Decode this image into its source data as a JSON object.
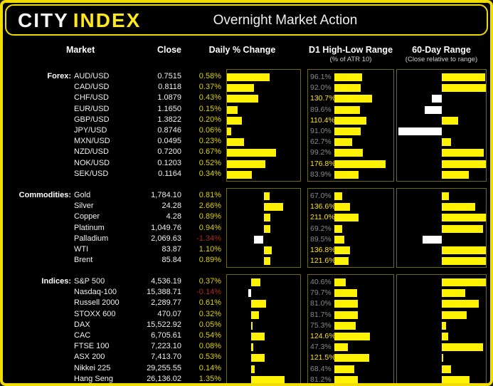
{
  "header": {
    "logo_city": "CITY",
    "logo_index": "INDEX",
    "title": "Overnight Market Action"
  },
  "columns": {
    "market": "Market",
    "close": "Close",
    "daily": "Daily % Change",
    "d1": "D1 High-Low Range",
    "d1_sub": "(% of ATR 10)",
    "range60": "60-Day Range",
    "range60_sub": "(Close relative to range)"
  },
  "colors": {
    "frame_border": "#f0dc00",
    "logo_index_yellow": "#ffe81a",
    "bar_yellow": "#fff200",
    "bar_white": "#ffffff",
    "pct_positive_text": "#e0d100",
    "pct_negative_text": "#b02a1a",
    "d1_above_100_text": "#ffe412",
    "d1_below_100_text": "#8a8a8a",
    "chart_box_border": "#6f6a08"
  },
  "chart_data": {
    "type": "bar",
    "note": "Three market groups; daily % change bars, D1 high-low range as % of ATR10 bars, and close position within 60-day range (-1 low .. +1 high).",
    "groups": [
      {
        "label": "Forex:",
        "daily_axis": {
          "min": 0,
          "max": 1
        },
        "d1_axis_max": 200,
        "rows": [
          {
            "market": "AUD/USD",
            "close": "0.7515",
            "pct_label": "0.58%",
            "pct": 0.58,
            "d1_label": "96.1%",
            "d1": 96.1,
            "r60": 0.98
          },
          {
            "market": "CAD/USD",
            "close": "0.8118",
            "pct_label": "0.37%",
            "pct": 0.37,
            "d1_label": "92.0%",
            "d1": 92.0,
            "r60": 1.0
          },
          {
            "market": "CHF/USD",
            "close": "1.0879",
            "pct_label": "0.43%",
            "pct": 0.43,
            "d1_label": "130.7%",
            "d1": 130.7,
            "r60": -0.22
          },
          {
            "market": "EUR/USD",
            "close": "1.1650",
            "pct_label": "0.15%",
            "pct": 0.15,
            "d1_label": "89.6%",
            "d1": 89.6,
            "r60": -0.38
          },
          {
            "market": "GBP/USD",
            "close": "1.3822",
            "pct_label": "0.20%",
            "pct": 0.2,
            "d1_label": "110.4%",
            "d1": 110.4,
            "r60": 0.38
          },
          {
            "market": "JPY/USD",
            "close": "0.8746",
            "pct_label": "0.06%",
            "pct": 0.06,
            "d1_label": "91.0%",
            "d1": 91.0,
            "r60": -0.97
          },
          {
            "market": "MXN/USD",
            "close": "0.0495",
            "pct_label": "0.23%",
            "pct": 0.23,
            "d1_label": "62.7%",
            "d1": 62.7,
            "r60": 0.22
          },
          {
            "market": "NZD/USD",
            "close": "0.7200",
            "pct_label": "0.67%",
            "pct": 0.67,
            "d1_label": "99.2%",
            "d1": 99.2,
            "r60": 0.95
          },
          {
            "market": "NOK/USD",
            "close": "0.1203",
            "pct_label": "0.52%",
            "pct": 0.52,
            "d1_label": "176.8%",
            "d1": 176.8,
            "r60": 1.0
          },
          {
            "market": "SEK/USD",
            "close": "0.1164",
            "pct_label": "0.34%",
            "pct": 0.34,
            "d1_label": "83.9%",
            "d1": 83.9,
            "r60": 0.62
          }
        ]
      },
      {
        "label": "Commodities:",
        "daily_axis": {
          "min": -5,
          "max": 5
        },
        "d1_axis_max": 500,
        "rows": [
          {
            "market": "Gold",
            "close": "1,784.10",
            "pct_label": "0.81%",
            "pct": 0.81,
            "d1_label": "67.0%",
            "d1": 67.0,
            "r60": 0.16
          },
          {
            "market": "Silver",
            "close": "24.28",
            "pct_label": "2.66%",
            "pct": 2.66,
            "d1_label": "136.6%",
            "d1": 136.6,
            "r60": 0.76
          },
          {
            "market": "Copper",
            "close": "4.28",
            "pct_label": "0.89%",
            "pct": 0.89,
            "d1_label": "211.0%",
            "d1": 211.0,
            "r60": 1.0
          },
          {
            "market": "Platinum",
            "close": "1,049.76",
            "pct_label": "0.94%",
            "pct": 0.94,
            "d1_label": "69.2%",
            "d1": 69.2,
            "r60": 0.93
          },
          {
            "market": "Palladium",
            "close": "2,069.63",
            "pct_label": "-1.34%",
            "pct": -1.34,
            "d1_label": "89.5%",
            "d1": 89.5,
            "r60": -0.43
          },
          {
            "market": "WTI",
            "close": "83.87",
            "pct_label": "1.10%",
            "pct": 1.1,
            "d1_label": "136.8%",
            "d1": 136.8,
            "r60": 1.0
          },
          {
            "market": "Brent",
            "close": "85.84",
            "pct_label": "0.89%",
            "pct": 0.89,
            "d1_label": "121.6%",
            "d1": 121.6,
            "r60": 1.0
          }
        ]
      },
      {
        "label": "Indices:",
        "daily_axis": {
          "min": -1,
          "max": 2
        },
        "d1_axis_max": 200,
        "rows": [
          {
            "market": "S&P 500",
            "close": "4,536.19",
            "pct_label": "0.37%",
            "pct": 0.37,
            "d1_label": "40.6%",
            "d1": 40.6,
            "r60": 1.0
          },
          {
            "market": "Nasdaq-100",
            "close": "15,388.71",
            "pct_label": "-0.14%",
            "pct": -0.14,
            "d1_label": "79.7%",
            "d1": 79.7,
            "r60": 0.54
          },
          {
            "market": "Russell 2000",
            "close": "2,289.77",
            "pct_label": "0.61%",
            "pct": 0.61,
            "d1_label": "81.0%",
            "d1": 81.0,
            "r60": 0.84
          },
          {
            "market": "STOXX 600",
            "close": "470.07",
            "pct_label": "0.32%",
            "pct": 0.32,
            "d1_label": "81.7%",
            "d1": 81.7,
            "r60": 0.57
          },
          {
            "market": "DAX",
            "close": "15,522.92",
            "pct_label": "0.05%",
            "pct": 0.05,
            "d1_label": "75.3%",
            "d1": 75.3,
            "r60": 0.11
          },
          {
            "market": "CAC",
            "close": "6,705.61",
            "pct_label": "0.54%",
            "pct": 0.54,
            "d1_label": "124.6%",
            "d1": 124.6,
            "r60": 0.15
          },
          {
            "market": "FTSE 100",
            "close": "7,223.10",
            "pct_label": "0.08%",
            "pct": 0.08,
            "d1_label": "47.3%",
            "d1": 47.3,
            "r60": 0.94
          },
          {
            "market": "ASX 200",
            "close": "7,413.70",
            "pct_label": "0.53%",
            "pct": 0.53,
            "d1_label": "121.5%",
            "d1": 121.5,
            "r60": 0.04
          },
          {
            "market": "Nikkei 225",
            "close": "29,255.55",
            "pct_label": "0.14%",
            "pct": 0.14,
            "d1_label": "68.4%",
            "d1": 68.4,
            "r60": 0.22
          },
          {
            "market": "Hang Seng",
            "close": "26,136.02",
            "pct_label": "1.35%",
            "pct": 1.35,
            "d1_label": "81.2%",
            "d1": 81.2,
            "r60": 0.63
          }
        ]
      }
    ]
  }
}
